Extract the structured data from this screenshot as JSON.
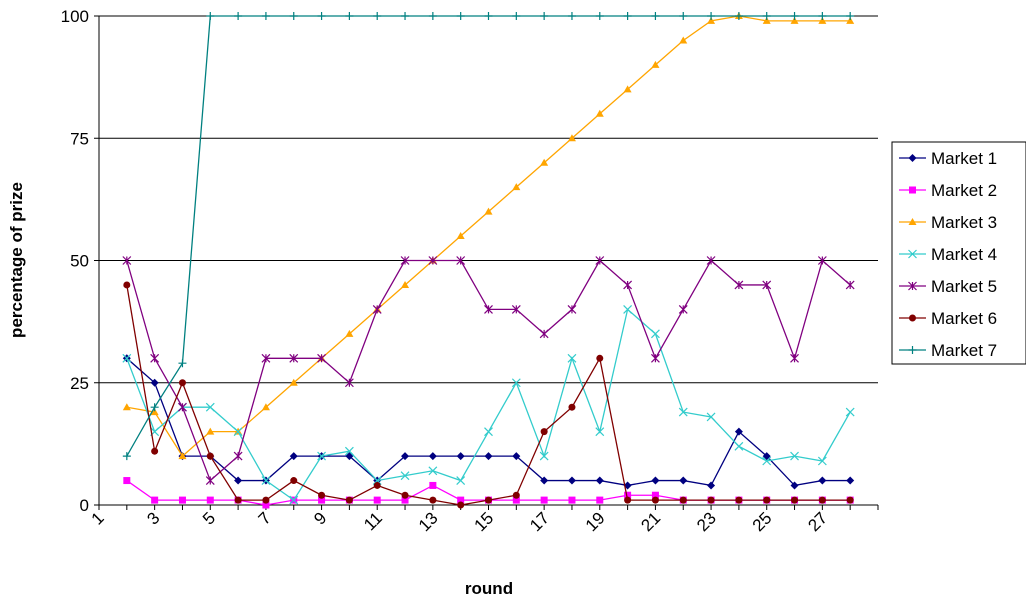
{
  "chart_data": {
    "type": "line",
    "title": "",
    "xlabel": "round",
    "ylabel": "percentage of prize",
    "x": [
      1,
      2,
      3,
      4,
      5,
      6,
      7,
      8,
      9,
      10,
      11,
      12,
      13,
      14,
      15,
      16,
      17,
      18,
      19,
      20,
      21,
      22,
      23,
      24,
      25,
      26,
      27,
      28
    ],
    "x_tick_labels": [
      "1",
      "3",
      "5",
      "7",
      "9",
      "11",
      "13",
      "15",
      "17",
      "19",
      "21",
      "23",
      "25",
      "27"
    ],
    "y_ticks": [
      "0",
      "25",
      "50",
      "75",
      "100"
    ],
    "ylim": [
      0,
      100
    ],
    "grid": "horizontal",
    "legend_position": "right",
    "series": [
      {
        "name": "Market 1",
        "color": "#000080",
        "marker": "diamond",
        "values": [
          null,
          30,
          25,
          10,
          10,
          5,
          5,
          10,
          10,
          10,
          5,
          10,
          10,
          10,
          10,
          10,
          5,
          5,
          5,
          4,
          5,
          5,
          4,
          15,
          10,
          4,
          5,
          5
        ]
      },
      {
        "name": "Market 2",
        "color": "#FF00FF",
        "marker": "square",
        "values": [
          null,
          5,
          1,
          1,
          1,
          1,
          0,
          1,
          1,
          1,
          1,
          1,
          4,
          1,
          1,
          1,
          1,
          1,
          1,
          2,
          2,
          1,
          1,
          1,
          1,
          1,
          1,
          1
        ]
      },
      {
        "name": "Market 3",
        "color": "#FFA500",
        "marker": "triangle",
        "values": [
          null,
          20,
          19,
          10,
          15,
          15,
          20,
          25,
          30,
          35,
          40,
          45,
          50,
          55,
          60,
          65,
          70,
          75,
          80,
          85,
          90,
          95,
          99,
          100,
          99,
          99,
          99,
          99
        ]
      },
      {
        "name": "Market 4",
        "color": "#33CCCC",
        "marker": "x",
        "values": [
          null,
          30,
          15,
          20,
          20,
          15,
          5,
          1,
          10,
          11,
          5,
          6,
          7,
          5,
          15,
          25,
          10,
          30,
          15,
          40,
          35,
          19,
          18,
          12,
          9,
          10,
          9,
          19
        ]
      },
      {
        "name": "Market 5",
        "color": "#800080",
        "marker": "asterisk",
        "values": [
          null,
          50,
          30,
          20,
          5,
          10,
          30,
          30,
          30,
          25,
          40,
          50,
          50,
          50,
          40,
          40,
          35,
          40,
          50,
          45,
          30,
          40,
          50,
          45,
          45,
          30,
          50,
          45
        ]
      },
      {
        "name": "Market 6",
        "color": "#800000",
        "marker": "circle",
        "values": [
          null,
          45,
          11,
          25,
          10,
          1,
          1,
          5,
          2,
          1,
          4,
          2,
          1,
          0,
          1,
          2,
          15,
          20,
          30,
          1,
          1,
          1,
          1,
          1,
          1,
          1,
          1,
          1
        ]
      },
      {
        "name": "Market 7",
        "color": "#008080",
        "marker": "plus",
        "values": [
          null,
          10,
          20,
          29,
          100,
          100,
          100,
          100,
          100,
          100,
          100,
          100,
          100,
          100,
          100,
          100,
          100,
          100,
          100,
          100,
          100,
          100,
          100,
          100,
          100,
          100,
          100,
          100
        ]
      }
    ]
  }
}
